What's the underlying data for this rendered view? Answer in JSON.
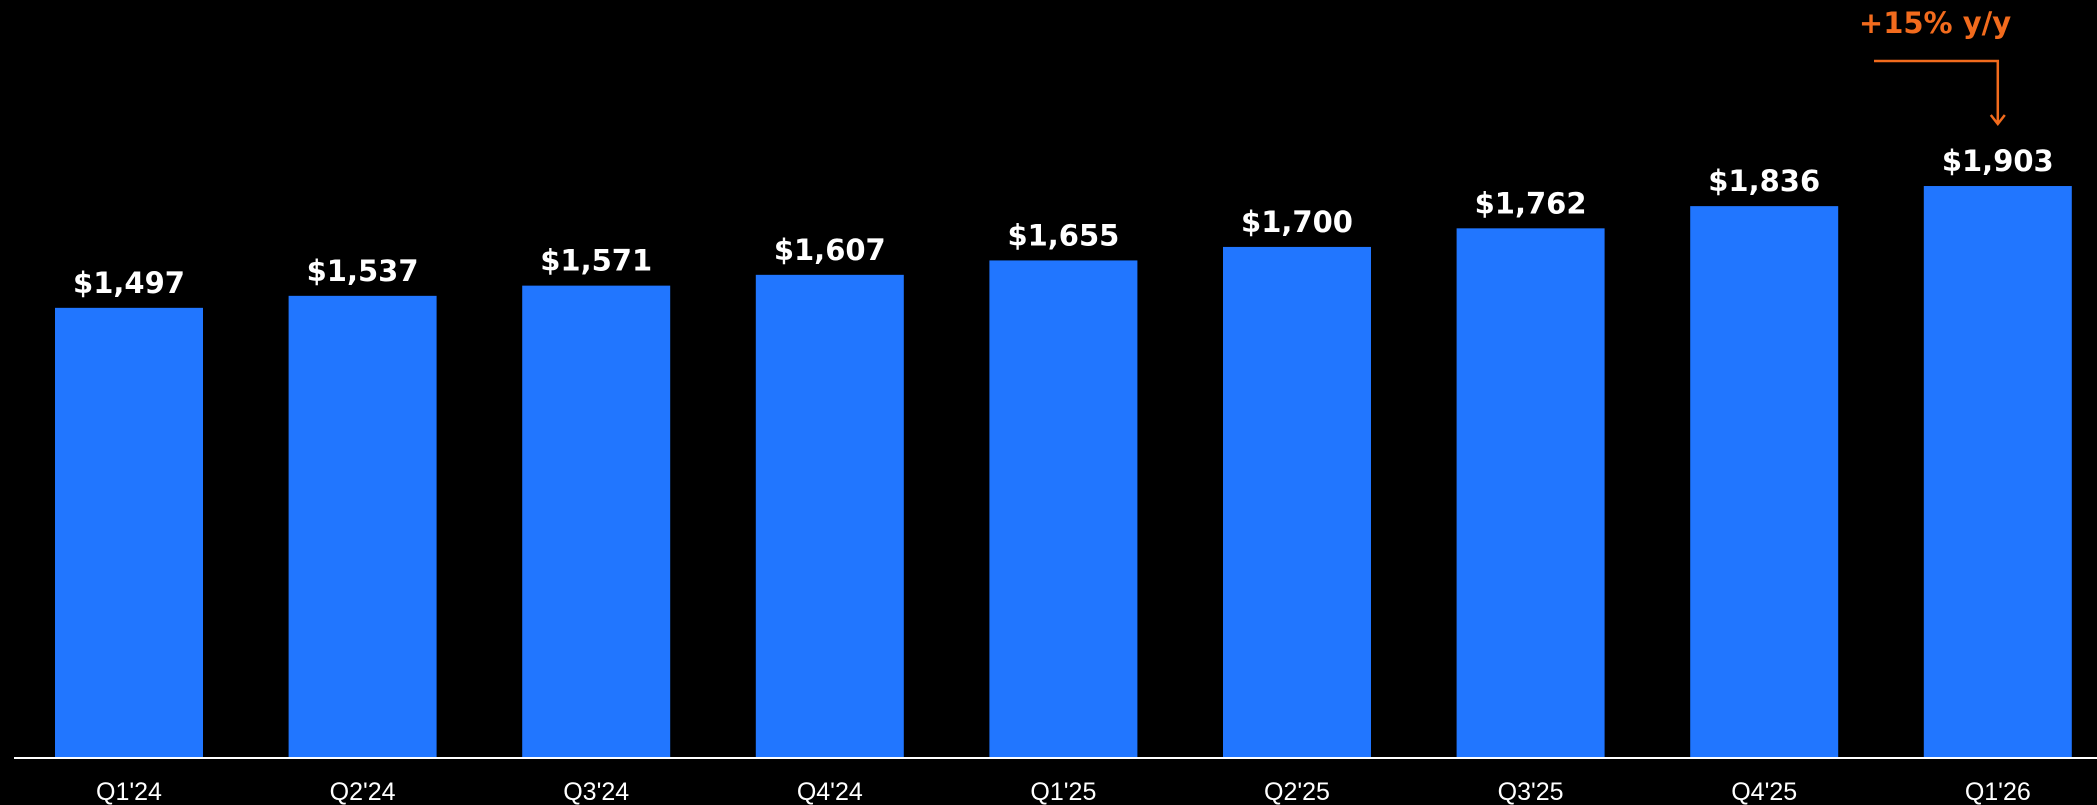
{
  "colors": {
    "background": "#000000",
    "bar": "#2176FF",
    "value_label": "#FFFFFF",
    "tick_label": "#FFFFFF",
    "axis": "#FFFFFF",
    "annotation": "#F26B1D"
  },
  "chart_data": {
    "type": "bar",
    "title": "",
    "xlabel": "",
    "ylabel": "",
    "categories": [
      "Q1'24",
      "Q2'24",
      "Q3'24",
      "Q4'24",
      "Q1'25",
      "Q2'25",
      "Q3'25",
      "Q4'25",
      "Q1'26"
    ],
    "values": [
      1497,
      1537,
      1571,
      1607,
      1655,
      1700,
      1762,
      1836,
      1903
    ],
    "value_labels": [
      "$1,497",
      "$1,537",
      "$1,571",
      "$1,607",
      "$1,655",
      "$1,700",
      "$1,762",
      "$1,836",
      "$1,903"
    ],
    "ylim": [
      0,
      2523
    ],
    "grid": false,
    "legend": "none",
    "annotation": {
      "text": "+15% y/y",
      "target_category": "Q1'26"
    }
  }
}
